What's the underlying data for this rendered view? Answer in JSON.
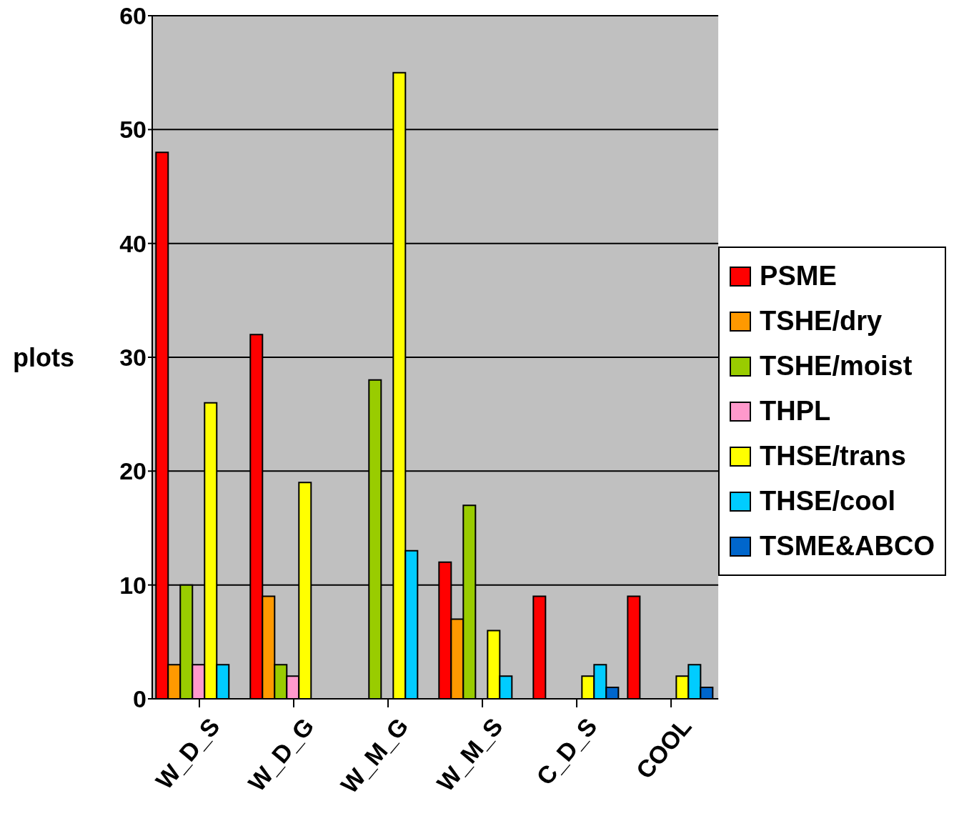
{
  "chart_data": {
    "type": "bar",
    "ylabel": "plots",
    "categories": [
      "W_D_S",
      "W_D_G",
      "W_M_G",
      "W_M_S",
      "C_D_S",
      "COOL"
    ],
    "series": [
      {
        "name": "PSME",
        "color": "#ff0000",
        "values": [
          48,
          32,
          0,
          12,
          9,
          9
        ]
      },
      {
        "name": "TSHE/dry",
        "color": "#ff9900",
        "values": [
          3,
          9,
          0,
          7,
          0,
          0
        ]
      },
      {
        "name": "TSHE/moist",
        "color": "#99cc00",
        "values": [
          10,
          3,
          28,
          17,
          0,
          0
        ]
      },
      {
        "name": "THPL",
        "color": "#ff99cc",
        "values": [
          3,
          2,
          0,
          0,
          0,
          0
        ]
      },
      {
        "name": "THSE/trans",
        "color": "#ffff00",
        "values": [
          26,
          19,
          55,
          6,
          2,
          2
        ]
      },
      {
        "name": "THSE/cool",
        "color": "#00ccff",
        "values": [
          3,
          0,
          13,
          2,
          3,
          3
        ]
      },
      {
        "name": "TSME&ABCO",
        "color": "#0066cc",
        "values": [
          0,
          0,
          0,
          0,
          1,
          1
        ]
      }
    ],
    "ylim": [
      0,
      60
    ],
    "yticks": [
      0,
      10,
      20,
      30,
      40,
      50,
      60
    ],
    "grid": "y",
    "legend": "right"
  }
}
